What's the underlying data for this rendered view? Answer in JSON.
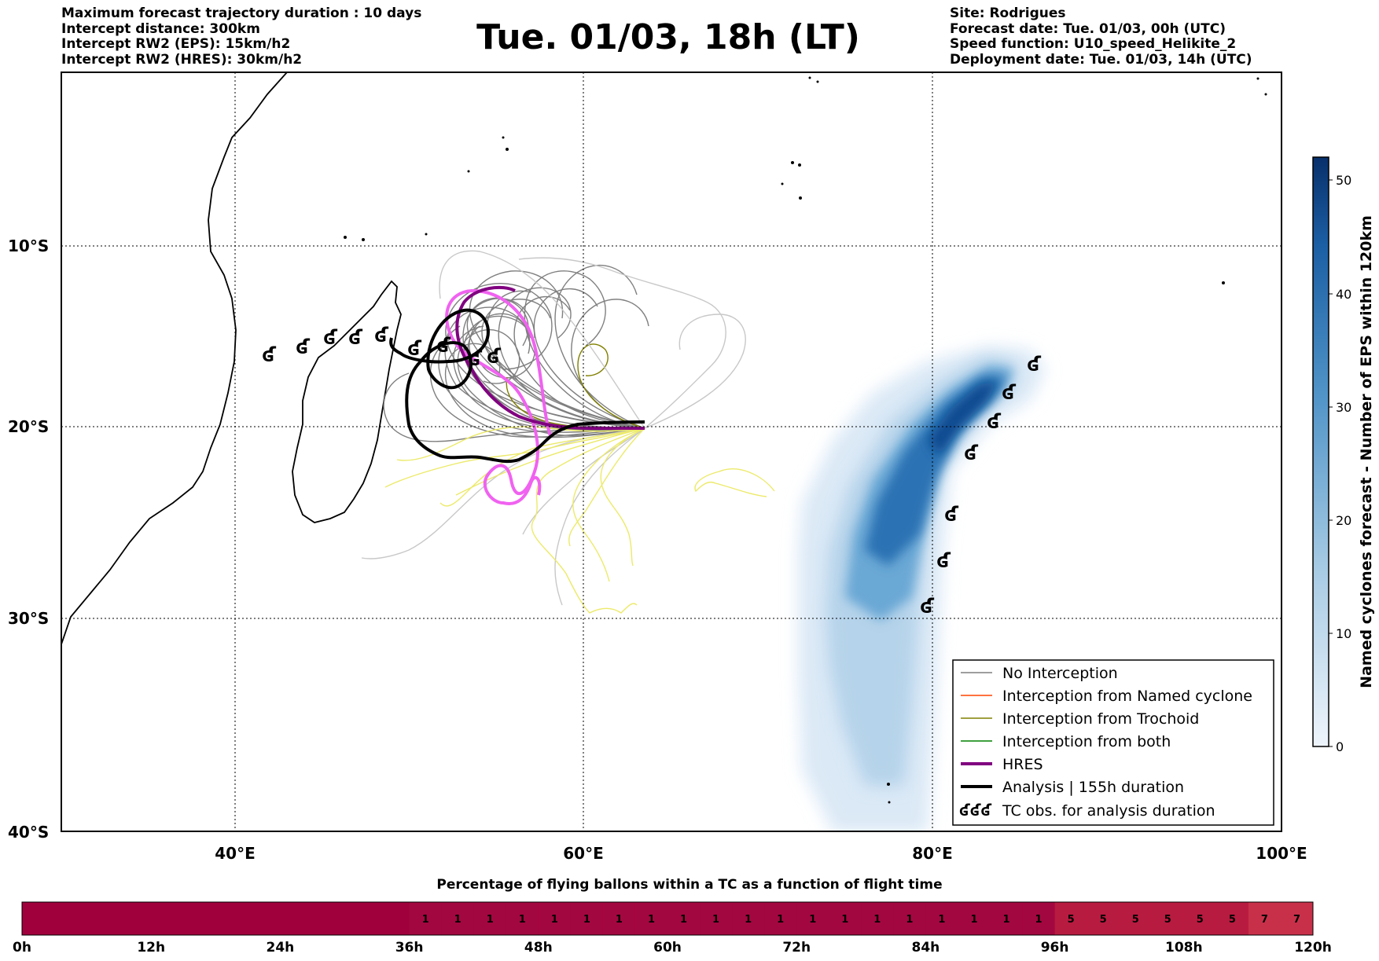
{
  "header": {
    "left_lines": [
      "Maximum forecast trajectory duration : 10 days",
      "Intercept distance: 300km",
      "Intercept RW2 (EPS):  15km/h2",
      "Intercept RW2 (HRES): 30km/h2"
    ],
    "title": "Tue. 01/03, 18h (LT)",
    "right_lines": [
      "Site: Rodrigues",
      "Forecast date: Tue. 01/03, 00h (UTC)",
      "Speed function: U10_speed_Helikite_2",
      "Deployment date: Tue. 01/03, 14h (UTC)"
    ]
  },
  "map": {
    "lat_labels": [
      "10°S",
      "20°S",
      "30°S",
      "40°S"
    ],
    "lon_labels": [
      "40°E",
      "60°E",
      "80°E",
      "100°E"
    ],
    "extent": {
      "lon_min": 30,
      "lon_max": 100,
      "lat_min": -40,
      "lat_max": -1
    }
  },
  "colorbar": {
    "title": "Named cyclones forecast - Number of EPS within 120km",
    "ticks": [
      "0",
      "10",
      "20",
      "30",
      "40",
      "50"
    ],
    "min_color": "#deebf7",
    "max_color": "#08306b"
  },
  "legend": {
    "items": [
      {
        "label": "No Interception",
        "color": "#7f7f7f"
      },
      {
        "label": "Interception from Named cyclone",
        "color": "#ff4500"
      },
      {
        "label": "Interception from Trochoid",
        "color": "#808000"
      },
      {
        "label": "Interception from both",
        "color": "#008000"
      },
      {
        "label": "HRES",
        "color": "#800080"
      },
      {
        "label": "Analysis | 155h duration",
        "color": "#000000"
      },
      {
        "label": "TC obs. for analysis duration",
        "color": "#000000"
      }
    ],
    "tc_symbol": "ʛʛʛ"
  },
  "bottom_bar": {
    "title": "Percentage of flying ballons within a TC as a function of flight time",
    "tick_labels": [
      "0h",
      "12h",
      "24h",
      "36h",
      "48h",
      "60h",
      "72h",
      "84h",
      "96h",
      "108h",
      "120h"
    ],
    "segments": [
      "1",
      "1",
      "1",
      "1",
      "1",
      "1",
      "1",
      "1",
      "1",
      "1",
      "1",
      "1",
      "1",
      "1",
      "1",
      "1",
      "1",
      "1",
      "1",
      "1",
      "5",
      "5",
      "5",
      "5",
      "5",
      "5",
      "7",
      "7"
    ],
    "colors": {
      "zero": "#a0003c",
      "one": "#a3073f",
      "five": "#b81b40",
      "seven": "#c8304a"
    }
  }
}
